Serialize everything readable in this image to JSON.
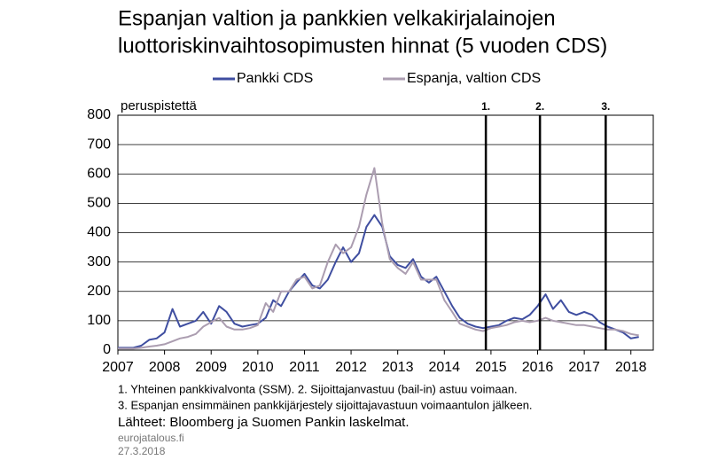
{
  "chart_data": {
    "type": "line",
    "title": [
      "Espanjan valtion ja pankkien velkakirjalainojen",
      "luottoriskinvaihtosopimusten hinnat (5 vuoden CDS)"
    ],
    "y_label": "peruspistettä",
    "x": [
      2007.0,
      2007.17,
      2007.33,
      2007.5,
      2007.67,
      2007.83,
      2008.0,
      2008.17,
      2008.33,
      2008.5,
      2008.67,
      2008.83,
      2009.0,
      2009.17,
      2009.33,
      2009.5,
      2009.67,
      2009.83,
      2010.0,
      2010.17,
      2010.33,
      2010.5,
      2010.67,
      2010.83,
      2011.0,
      2011.17,
      2011.33,
      2011.5,
      2011.67,
      2011.83,
      2012.0,
      2012.17,
      2012.33,
      2012.5,
      2012.67,
      2012.83,
      2013.0,
      2013.17,
      2013.33,
      2013.5,
      2013.67,
      2013.83,
      2014.0,
      2014.17,
      2014.33,
      2014.5,
      2014.67,
      2014.83,
      2015.0,
      2015.17,
      2015.33,
      2015.5,
      2015.67,
      2015.83,
      2016.0,
      2016.17,
      2016.33,
      2016.5,
      2016.67,
      2016.83,
      2017.0,
      2017.17,
      2017.33,
      2017.5,
      2017.67,
      2017.83,
      2018.0,
      2018.17
    ],
    "series": [
      {
        "name": "Pankki CDS",
        "color": "#3f4ea0",
        "values": [
          8,
          8,
          8,
          15,
          35,
          40,
          60,
          140,
          80,
          90,
          100,
          130,
          90,
          150,
          130,
          90,
          80,
          85,
          90,
          110,
          170,
          150,
          200,
          230,
          260,
          220,
          210,
          240,
          300,
          350,
          300,
          330,
          420,
          460,
          420,
          320,
          290,
          280,
          310,
          250,
          230,
          250,
          200,
          150,
          110,
          90,
          80,
          75,
          80,
          85,
          100,
          110,
          105,
          120,
          150,
          190,
          140,
          170,
          130,
          120,
          130,
          120,
          95,
          80,
          70,
          60,
          40,
          45
        ]
      },
      {
        "name": "Espanja, valtion CDS",
        "color": "#ab9db0",
        "values": [
          5,
          5,
          5,
          8,
          12,
          15,
          20,
          30,
          40,
          45,
          55,
          80,
          95,
          110,
          80,
          70,
          70,
          75,
          85,
          160,
          130,
          200,
          200,
          240,
          250,
          210,
          220,
          300,
          360,
          330,
          350,
          420,
          530,
          620,
          430,
          310,
          280,
          260,
          300,
          240,
          240,
          240,
          170,
          130,
          90,
          80,
          70,
          65,
          75,
          80,
          85,
          95,
          100,
          95,
          100,
          110,
          100,
          95,
          90,
          85,
          85,
          80,
          75,
          70,
          70,
          65,
          55,
          50
        ]
      }
    ],
    "events": [
      {
        "x": 2014.89,
        "label": "1."
      },
      {
        "x": 2016.05,
        "label": "2."
      },
      {
        "x": 2017.46,
        "label": "3."
      }
    ],
    "xlim": [
      2007,
      2018.48
    ],
    "xticks": [
      2007,
      2008,
      2009,
      2010,
      2011,
      2012,
      2013,
      2014,
      2015,
      2016,
      2017,
      2018
    ],
    "ylim": [
      0,
      800
    ],
    "yticks": [
      0,
      100,
      200,
      300,
      400,
      500,
      600,
      700,
      800
    ],
    "grid": true,
    "notes": [
      "1. Yhteinen pankkivalvonta (SSM). 2. Sijoittajanvastuu (bail-in) astuu voimaan.",
      "3. Espanjan ensimmäinen pankkijärjestely sijoittajavastuun voimaantulon jälkeen."
    ],
    "source": "Lähteet: Bloomberg ja Suomen Pankin laskelmat.",
    "footer": [
      "eurojatalous.fi",
      "27.3.2018"
    ]
  }
}
